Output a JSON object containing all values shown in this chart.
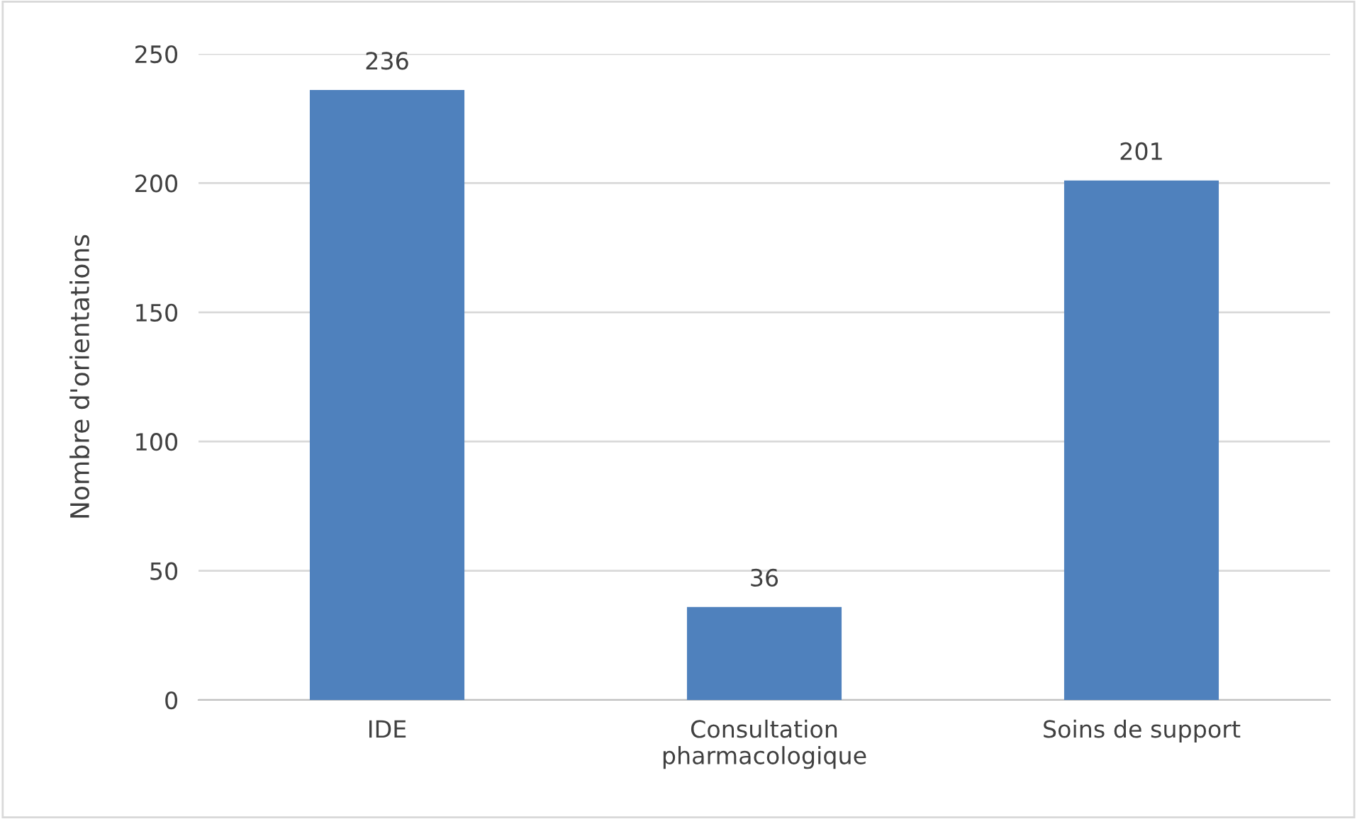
{
  "chart_data": {
    "type": "bar",
    "ylabel": "Nombre d'orientations",
    "categories": [
      "IDE",
      "Consultation\npharmacologique",
      "Soins de support"
    ],
    "values": [
      236,
      36,
      201
    ],
    "color": "#4f81bd",
    "ylim": [
      0,
      250
    ],
    "yticks": [
      0,
      50,
      100,
      150,
      200,
      250
    ],
    "grid": "y",
    "data_labels": true
  }
}
